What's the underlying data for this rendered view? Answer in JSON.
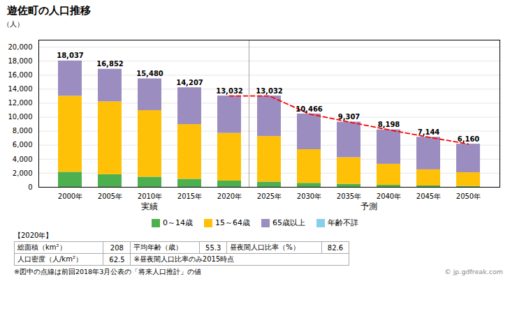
{
  "chart_data": {
    "type": "bar",
    "stacked": true,
    "title": "遊佐町の人口推移",
    "ylabel": "（人）",
    "categories": [
      "2000年",
      "2005年",
      "2010年",
      "2015年",
      "2020年",
      "2025年",
      "2030年",
      "2035年",
      "2040年",
      "2045年",
      "2050年"
    ],
    "series": [
      {
        "name": "0～14歳",
        "color": "#4CAF50",
        "values": [
          2150,
          1800,
          1450,
          1150,
          900,
          750,
          570,
          430,
          290,
          200,
          130
        ]
      },
      {
        "name": "15～64歳",
        "color": "#FFC107",
        "values": [
          10850,
          10400,
          9500,
          7800,
          6800,
          6500,
          4800,
          3800,
          3000,
          2300,
          1950
        ]
      },
      {
        "name": "65歳以上",
        "color": "#9C8DC0",
        "values": [
          5037,
          4652,
          4530,
          5257,
          5332,
          5782,
          5096,
          5077,
          4908,
          4644,
          4080
        ]
      },
      {
        "name": "年齢不詳",
        "color": "#87CEEB",
        "values": [
          0,
          0,
          0,
          0,
          0,
          0,
          0,
          0,
          0,
          0,
          0
        ]
      }
    ],
    "totals": {
      "values": [
        18037,
        16852,
        15480,
        14207,
        13032,
        13032,
        10466,
        9307,
        8198,
        7144,
        6160
      ],
      "value_labels": [
        "18,037",
        "16,852",
        "15,480",
        "14,207",
        "13,032",
        "13,032",
        "10,466",
        "9,307",
        "8,198",
        "7,144",
        "6,160"
      ]
    },
    "forecast_line": {
      "type": "line",
      "color": "red",
      "line_style": "dashed",
      "values": [
        null,
        null,
        null,
        null,
        13032,
        13032,
        10466,
        9307,
        8198,
        7144,
        6160
      ]
    },
    "annotations": [
      {
        "text": "実績",
        "from": "2000年",
        "to": "2020年"
      },
      {
        "text": "予測",
        "from": "2025年",
        "to": "2050年"
      }
    ],
    "ylim": [
      0,
      21000
    ],
    "yticks": [
      0,
      {
        "value": 2000,
        "label": "2,000"
      },
      {
        "value": 4000,
        "label": "4,000"
      },
      {
        "value": 6000,
        "label": "6,000"
      },
      {
        "value": 8000,
        "label": "8,000"
      },
      {
        "value": 10000,
        "label": "10,000"
      },
      {
        "value": 12000,
        "label": "12,000"
      },
      {
        "value": 14000,
        "label": "14,000"
      },
      {
        "value": 16000,
        "label": "16,000"
      },
      {
        "value": 18000,
        "label": "18,000"
      },
      {
        "value": 20000,
        "label": "20,000"
      }
    ],
    "grid": true,
    "legend": "bottom",
    "table": {
      "title": "【2020年】",
      "rows": [
        [
          "総面積（km²）",
          "208",
          "平均年齢（歳）",
          "55.3",
          "昼夜間人口比率（%）",
          "82.6"
        ],
        [
          "人口密度（人/km²）",
          "62.5",
          "※昼夜間人口比率のみ2015時点"
        ]
      ]
    },
    "footer": "※図中の点線は前回2018年3月公表の「将来人口推計」の値",
    "source": "© jp.gdfreak.com"
  }
}
